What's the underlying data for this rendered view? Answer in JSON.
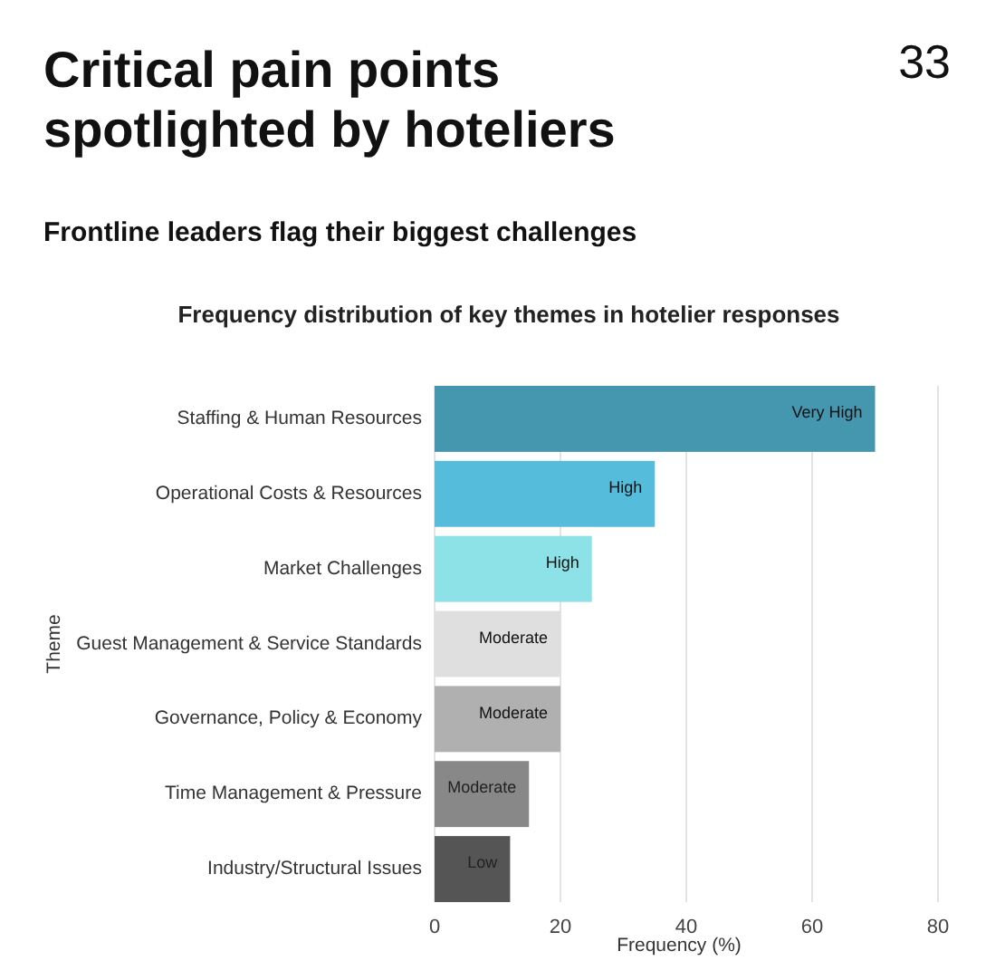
{
  "chart_data": {
    "type": "bar",
    "orientation": "horizontal",
    "title": "Critical pain points spotlighted by hoteliers",
    "subtitle": "Frontline leaders flag their biggest challenges",
    "annotations": [
      "33",
      "Frequency distribution of key themes in hotelier responses"
    ],
    "categories": [
      "Staffing & Human Resources",
      "Operational Costs & Resources",
      "Market Challenges",
      "Guest Management & Service Standards",
      "Governance, Policy & Economy",
      "Time Management & Pressure",
      "Industry/Structural Issues"
    ],
    "values": [
      70,
      35,
      25,
      20,
      20,
      15,
      12
    ],
    "colors": [
      "#4597b0",
      "#56bcdc",
      "#8de2e8",
      "#dfdfdf",
      "#b0b0b0",
      "#888888",
      "#555555"
    ],
    "value_labels": [
      "Very High",
      "High",
      "High",
      "Moderate",
      "Moderate",
      "Moderate",
      "Low"
    ],
    "xlabel": "Frequency (%)",
    "ylabel": "Theme",
    "xlim": [
      0,
      80
    ],
    "xticks": [
      0,
      20,
      40,
      60,
      80
    ],
    "grid": "x"
  }
}
